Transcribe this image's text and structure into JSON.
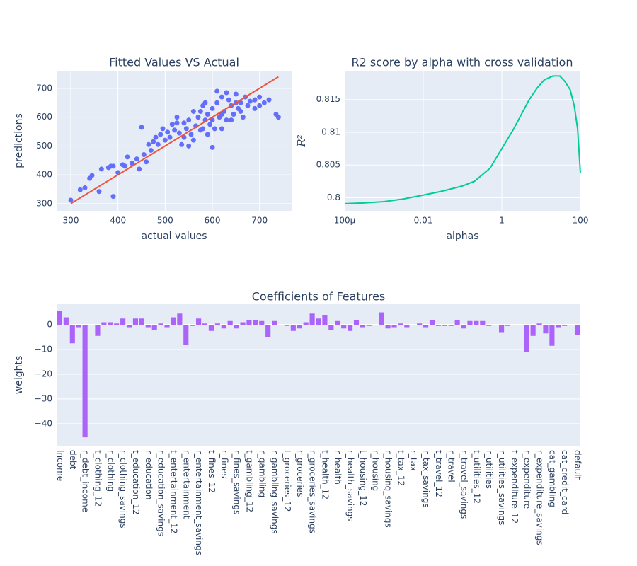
{
  "chart_data": [
    {
      "type": "scatter",
      "title": "Fitted Values VS Actual",
      "xlabel": "actual values",
      "ylabel": "predictions",
      "x": [
        300,
        320,
        330,
        340,
        345,
        360,
        365,
        380,
        385,
        390,
        390,
        400,
        410,
        415,
        420,
        430,
        440,
        445,
        450,
        455,
        460,
        465,
        470,
        475,
        480,
        485,
        490,
        495,
        500,
        505,
        510,
        515,
        520,
        525,
        530,
        535,
        540,
        545,
        550,
        555,
        560,
        565,
        570,
        575,
        580,
        585,
        590,
        595,
        600,
        605,
        610,
        615,
        620,
        625,
        630,
        635,
        640,
        645,
        650,
        655,
        660,
        665,
        670,
        675,
        680,
        690,
        700,
        710,
        720,
        735,
        740,
        560,
        580,
        600,
        620,
        540,
        610,
        630,
        590,
        600,
        550,
        650,
        575,
        525,
        620,
        640,
        690,
        700,
        660,
        585
      ],
      "y": [
        312,
        348,
        355,
        388,
        398,
        342,
        420,
        425,
        430,
        325,
        430,
        408,
        435,
        430,
        462,
        440,
        455,
        420,
        565,
        470,
        445,
        505,
        485,
        515,
        530,
        505,
        540,
        560,
        520,
        548,
        530,
        575,
        555,
        600,
        545,
        505,
        580,
        560,
        590,
        540,
        620,
        570,
        600,
        555,
        640,
        590,
        610,
        575,
        630,
        560,
        650,
        600,
        670,
        620,
        590,
        660,
        640,
        610,
        680,
        630,
        650,
        600,
        670,
        640,
        655,
        660,
        640,
        650,
        660,
        610,
        600,
        520,
        560,
        590,
        610,
        530,
        690,
        685,
        540,
        495,
        500,
        650,
        620,
        580,
        560,
        590,
        630,
        670,
        620,
        650
      ],
      "color": "#636efa",
      "fit_line": {
        "x": [
          300,
          740
        ],
        "y": [
          300,
          740
        ],
        "color": "#ef553b"
      },
      "xlim": [
        270,
        768
      ],
      "ylim": [
        275,
        761
      ],
      "xticks": [
        300,
        400,
        500,
        600,
        700
      ],
      "yticks": [
        300,
        400,
        500,
        600,
        700
      ],
      "grid": true
    },
    {
      "type": "line",
      "title": "R2 score by alpha with cross validation",
      "xlabel": "alphas",
      "ylabel": "R²",
      "x": [
        0.0001,
        0.0003,
        0.001,
        0.003,
        0.01,
        0.03,
        0.1,
        0.2,
        0.5,
        1,
        2,
        3,
        5,
        8,
        12,
        20,
        30,
        40,
        55,
        70,
        85,
        100
      ],
      "y": [
        0.7991,
        0.7992,
        0.7994,
        0.7998,
        0.8004,
        0.801,
        0.8018,
        0.8025,
        0.8045,
        0.8075,
        0.8105,
        0.8125,
        0.815,
        0.8168,
        0.818,
        0.8186,
        0.8186,
        0.8178,
        0.8165,
        0.814,
        0.8105,
        0.8038
      ],
      "color": "#00cc96",
      "xscale": "log",
      "xlim": [
        0.0001,
        100
      ],
      "ylim": [
        0.798,
        0.8194
      ],
      "xticks": [
        {
          "value": 0.0001,
          "label": "100µ"
        },
        0.01,
        1,
        100
      ],
      "yticks": [
        0.8,
        0.805,
        0.81,
        0.815
      ],
      "grid": true
    },
    {
      "type": "bar",
      "title": "Coefficients of Features",
      "ylabel": "weights",
      "categories": [
        "Income",
        null,
        "debt",
        null,
        "r_debt_income",
        null,
        "t_clothing_12",
        null,
        "r_clothing",
        null,
        "r_clothing_savings",
        null,
        "t_education_12",
        null,
        "r_education",
        null,
        "r_education_savings",
        null,
        "t_entertainment_12",
        null,
        "r_entertainment",
        null,
        "r_entertainment_savings",
        null,
        "t_fines_12",
        null,
        "r_fines",
        null,
        "r_fines_savings",
        null,
        "t_gambling_12",
        null,
        "r_gambling",
        null,
        "r_gambling_savings",
        null,
        "t_groceries_12",
        null,
        "r_groceries",
        null,
        "r_groceries_savings",
        null,
        "t_health_12",
        null,
        "r_health",
        null,
        "r_health_savings",
        null,
        "t_housing_12",
        null,
        "r_housing",
        null,
        "r_housing_savings",
        null,
        "t_tax_12",
        null,
        "r_tax",
        null,
        "r_tax_savings",
        null,
        "t_travel_12",
        null,
        "r_travel",
        null,
        "r_travel_savings",
        null,
        "t_utilities_12",
        null,
        "r_utilities",
        null,
        "r_utilities_savings",
        null,
        "t_expenditure_12",
        null,
        "r_expenditure",
        null,
        "r_expenditure_savings",
        null,
        "cat_gambling",
        null,
        "cat_credit_card",
        null,
        "default"
      ],
      "values": [
        5.5,
        3,
        -7.5,
        -1,
        -45.5,
        0,
        -4.5,
        1,
        1,
        0.5,
        2.5,
        -1,
        2.5,
        2.5,
        -1,
        -2,
        0.5,
        -1,
        3,
        4.5,
        -8,
        -0.5,
        2.5,
        0.5,
        -2.5,
        0.5,
        -1.5,
        1.5,
        -1.5,
        1,
        2,
        2,
        1.5,
        -5,
        1.5,
        0,
        -0.5,
        -2.5,
        -1.5,
        1,
        4.5,
        2.5,
        4,
        -2,
        1.5,
        -1.5,
        -2.5,
        2,
        -1,
        -0.5,
        0,
        5,
        -1.5,
        -1,
        0.5,
        -1,
        0,
        0.5,
        -1,
        2,
        -0.5,
        -0.5,
        -0.5,
        2,
        -1.5,
        1.5,
        1.5,
        1.5,
        -0.5,
        0,
        -3,
        -0.5,
        0,
        0,
        -11,
        -4.5,
        0.5,
        -3.5,
        -8.5,
        -1,
        -0.5,
        0,
        -4
      ],
      "color": "#ab63fa",
      "ylim": [
        -48.9,
        8.3
      ],
      "yticks": [
        0,
        {
          "value": -10,
          "label": "−10"
        },
        {
          "value": -20,
          "label": "−20"
        },
        {
          "value": -30,
          "label": "−30"
        },
        {
          "value": -40,
          "label": "−40"
        }
      ],
      "grid": true
    }
  ]
}
